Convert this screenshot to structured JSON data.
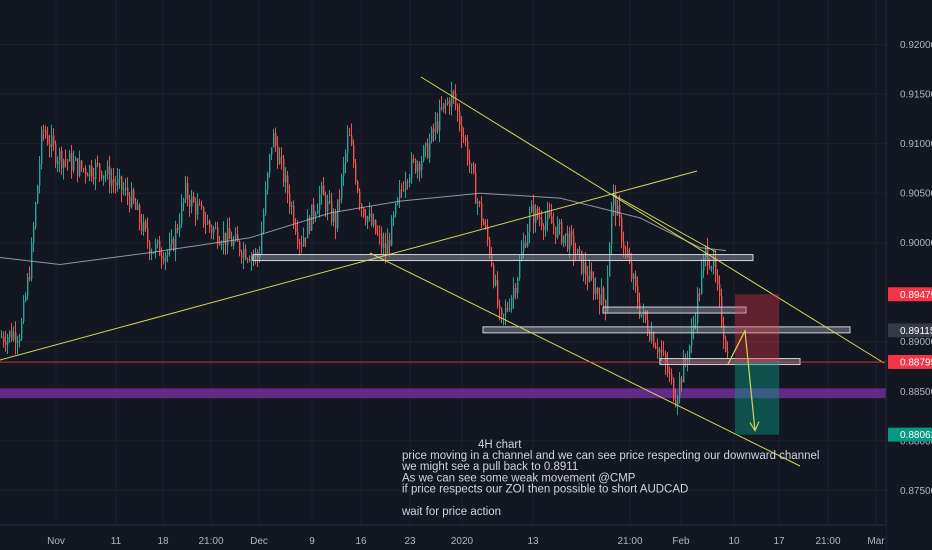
{
  "chart_data": {
    "type": "candlestick",
    "symbol": "AUDCAD",
    "ylim": [
      0.8715,
      0.9245
    ],
    "y_ticks": [
      "0.92000",
      "0.91500",
      "0.91000",
      "0.90500",
      "0.90000",
      "0.89000",
      "0.88500",
      "0.88000",
      "0.87500"
    ],
    "x_labels": [
      "Nov",
      "11",
      "18",
      "21:00",
      "Dec",
      "9",
      "16",
      "23",
      "2020",
      "13",
      "21:00",
      "Feb",
      "10",
      "17",
      "21:00",
      "Mar"
    ],
    "price_labels": [
      {
        "value": 0.89479,
        "text": "0.89479",
        "color": "#f23645"
      },
      {
        "value": 0.89115,
        "text": "0.89115",
        "color": "#363a45"
      },
      {
        "value": 0.88795,
        "text": "0.88795",
        "color": "#f23645"
      },
      {
        "value": 0.88062,
        "text": "0.88062",
        "color": "#089981"
      }
    ],
    "current_price": 0.88795,
    "zone": {
      "from": 0.8843,
      "to": 0.8853,
      "color": "#6a2c91"
    },
    "levels": [
      0.8985,
      0.8932,
      0.8912,
      0.888
    ],
    "position": {
      "entry": 0.88795,
      "stop": 0.89479,
      "target": 0.88062
    },
    "colors": {
      "up": "#26a69a",
      "down": "#ef5350",
      "trendline": "#d4d45a",
      "ma": "#b2b5be",
      "background": "#131722"
    },
    "annotation": {
      "heading": "4H chart",
      "lines": [
        "price moving in a channel and we can see price respecting our downward channel",
        "we might see a pull back to 0.8911",
        "As we can see some weak movement @CMP",
        "if price respects our ZOI then possible to short AUDCAD",
        "",
        "wait for price action"
      ]
    }
  }
}
